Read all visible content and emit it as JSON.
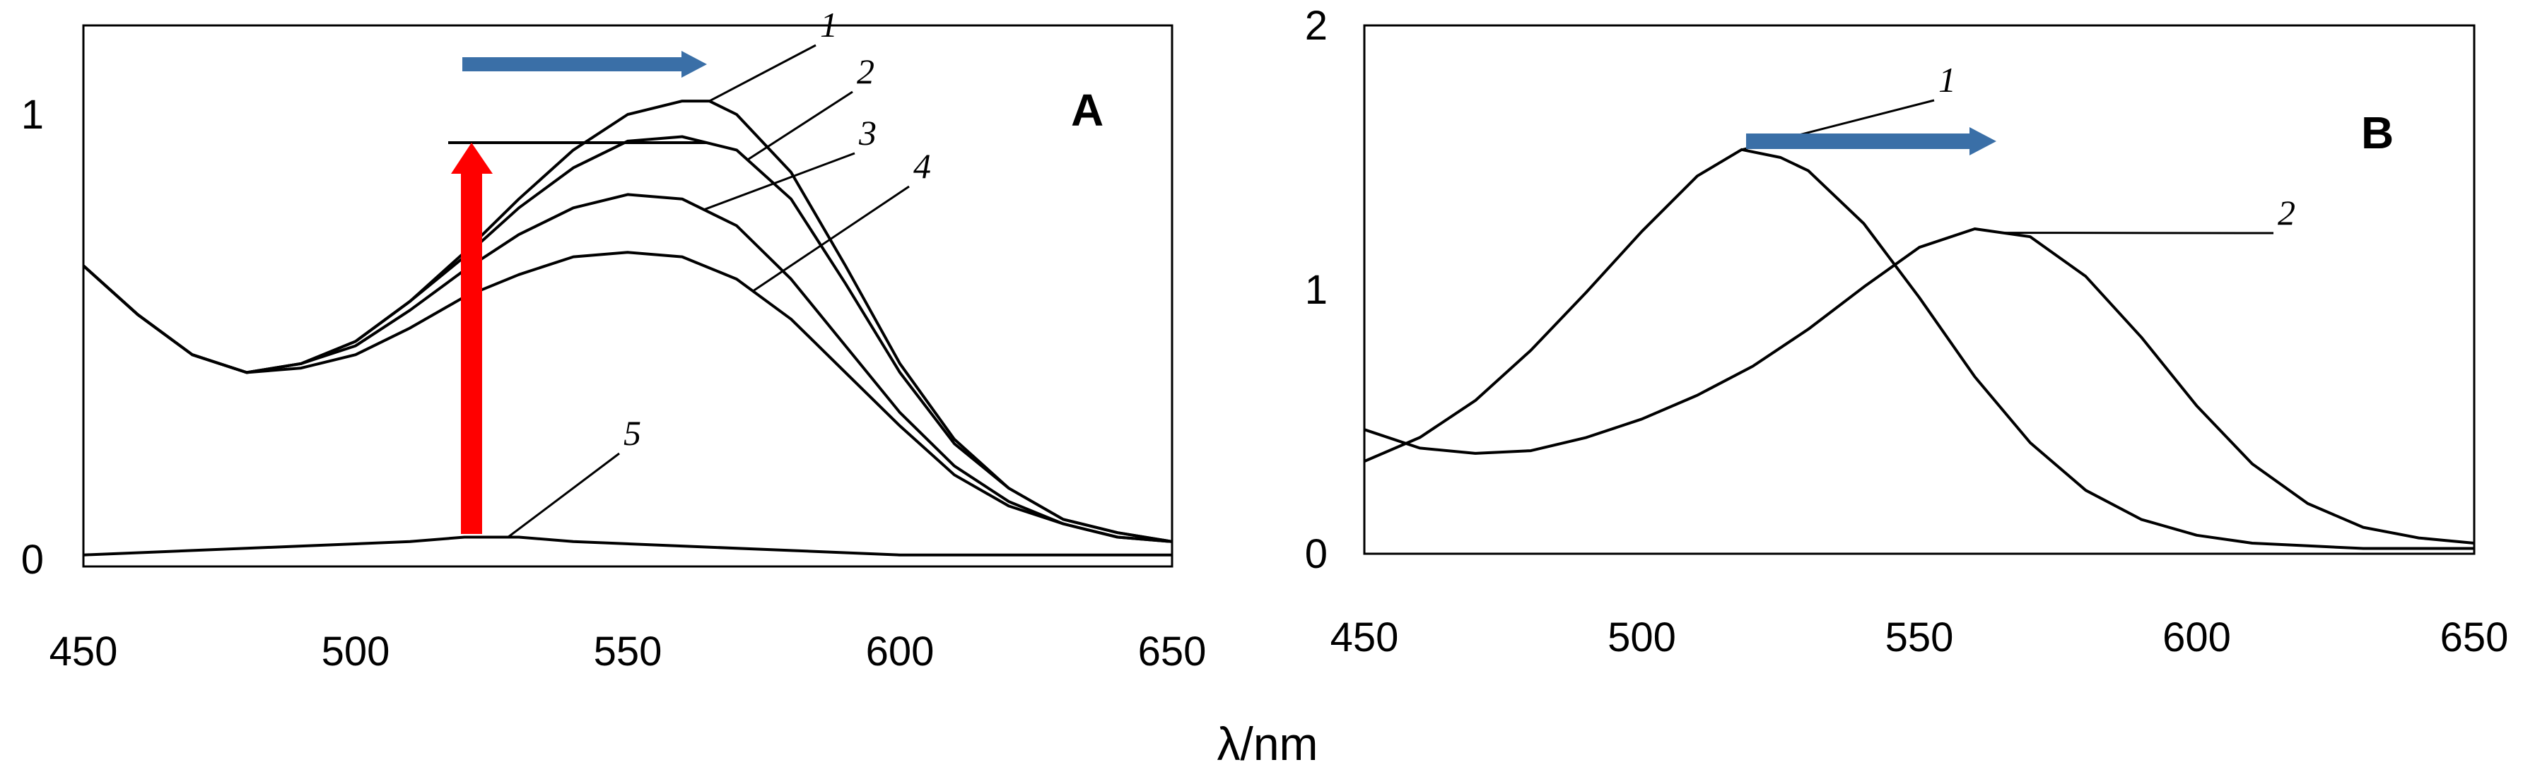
{
  "xlabel": "λ/nm",
  "arrow_colors": {
    "blue": "#3a6fa7",
    "red": "#ff0000"
  },
  "chart_data": [
    {
      "type": "line",
      "panel": "A",
      "xlim": [
        450,
        650
      ],
      "ylim": [
        0,
        1.2
      ],
      "x_ticks": [
        "450",
        "500",
        "550",
        "600",
        "650"
      ],
      "x_tick_values": [
        450,
        500,
        550,
        600,
        650
      ],
      "y_ticks": [
        "0",
        "1"
      ],
      "y_tick_values": [
        0,
        1
      ],
      "grid": false,
      "annotations": [
        "blue arrow pointing right (red shift)",
        "red arrow pointing up (intensity increase)"
      ],
      "series": [
        {
          "label": "1",
          "x": [
            450,
            460,
            470,
            480,
            490,
            500,
            510,
            520,
            530,
            540,
            550,
            560,
            565,
            570,
            580,
            590,
            600,
            610,
            620,
            630,
            640,
            650
          ],
          "y": [
            0.66,
            0.55,
            0.46,
            0.42,
            0.44,
            0.49,
            0.58,
            0.69,
            0.81,
            0.92,
            1.0,
            1.03,
            1.03,
            1.0,
            0.87,
            0.66,
            0.44,
            0.27,
            0.16,
            0.09,
            0.06,
            0.04
          ]
        },
        {
          "label": "2",
          "x": [
            450,
            460,
            470,
            480,
            490,
            500,
            510,
            520,
            530,
            540,
            550,
            560,
            570,
            580,
            590,
            600,
            610,
            620,
            630,
            640,
            650
          ],
          "y": [
            0.66,
            0.55,
            0.46,
            0.42,
            0.44,
            0.49,
            0.58,
            0.68,
            0.79,
            0.88,
            0.94,
            0.95,
            0.92,
            0.81,
            0.62,
            0.42,
            0.26,
            0.16,
            0.09,
            0.06,
            0.04
          ]
        },
        {
          "label": "3",
          "x": [
            450,
            460,
            470,
            480,
            490,
            500,
            510,
            520,
            530,
            540,
            550,
            560,
            570,
            580,
            590,
            600,
            610,
            620,
            630,
            640,
            650
          ],
          "y": [
            0.66,
            0.55,
            0.46,
            0.42,
            0.44,
            0.48,
            0.56,
            0.65,
            0.73,
            0.79,
            0.82,
            0.81,
            0.75,
            0.63,
            0.48,
            0.33,
            0.21,
            0.13,
            0.08,
            0.05,
            0.04
          ]
        },
        {
          "label": "4",
          "x": [
            450,
            460,
            470,
            480,
            490,
            500,
            510,
            520,
            530,
            540,
            550,
            560,
            570,
            580,
            590,
            600,
            610,
            620,
            630,
            640,
            650
          ],
          "y": [
            0.66,
            0.55,
            0.46,
            0.42,
            0.43,
            0.46,
            0.52,
            0.59,
            0.64,
            0.68,
            0.69,
            0.68,
            0.63,
            0.54,
            0.42,
            0.3,
            0.19,
            0.12,
            0.08,
            0.05,
            0.04
          ]
        },
        {
          "label": "5",
          "x": [
            450,
            470,
            490,
            510,
            520,
            530,
            540,
            560,
            580,
            600,
            620,
            640,
            650
          ],
          "y": [
            0.01,
            0.02,
            0.03,
            0.04,
            0.05,
            0.05,
            0.04,
            0.03,
            0.02,
            0.01,
            0.01,
            0.01,
            0.01
          ]
        }
      ]
    },
    {
      "type": "line",
      "panel": "B",
      "xlim": [
        450,
        650
      ],
      "ylim": [
        0,
        2
      ],
      "x_ticks": [
        "450",
        "500",
        "550",
        "600",
        "650"
      ],
      "x_tick_values": [
        450,
        500,
        550,
        600,
        650
      ],
      "y_ticks": [
        "0",
        "1",
        "2"
      ],
      "y_tick_values": [
        0,
        1,
        2
      ],
      "grid": false,
      "annotations": [
        "blue arrow pointing right (red shift)"
      ],
      "series": [
        {
          "label": "1",
          "x": [
            450,
            460,
            470,
            480,
            490,
            500,
            510,
            518,
            525,
            530,
            540,
            550,
            560,
            570,
            580,
            590,
            600,
            610,
            620,
            630,
            640,
            650
          ],
          "y": [
            0.35,
            0.44,
            0.58,
            0.77,
            0.99,
            1.22,
            1.43,
            1.53,
            1.5,
            1.45,
            1.25,
            0.97,
            0.67,
            0.42,
            0.24,
            0.13,
            0.07,
            0.04,
            0.03,
            0.02,
            0.02,
            0.02
          ]
        },
        {
          "label": "2",
          "x": [
            450,
            460,
            470,
            480,
            490,
            500,
            510,
            520,
            530,
            540,
            550,
            560,
            570,
            580,
            590,
            600,
            610,
            620,
            630,
            640,
            650
          ],
          "y": [
            0.47,
            0.4,
            0.38,
            0.39,
            0.44,
            0.51,
            0.6,
            0.71,
            0.85,
            1.01,
            1.16,
            1.23,
            1.2,
            1.05,
            0.82,
            0.56,
            0.34,
            0.19,
            0.1,
            0.06,
            0.04
          ]
        }
      ]
    }
  ]
}
